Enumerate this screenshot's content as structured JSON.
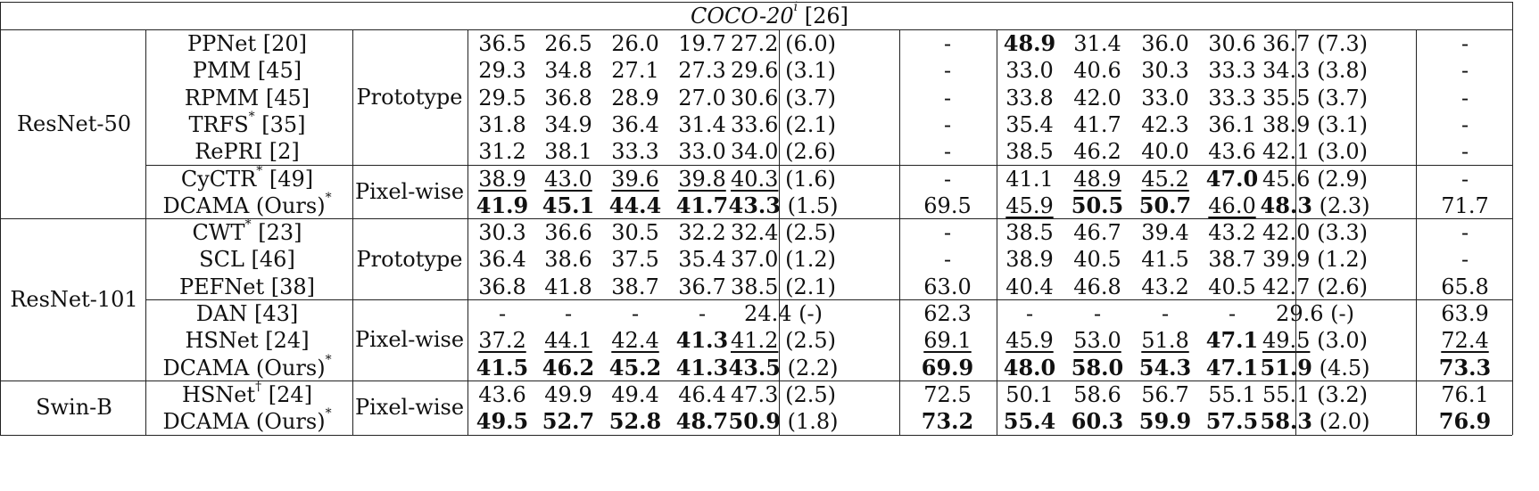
{
  "dataset_header": {
    "name": "COCO-20",
    "sup": "i",
    "ref": "[26]"
  },
  "groups": [
    {
      "backbone": "ResNet-50",
      "blocks": [
        {
          "type": "Prototype",
          "rows": [
            {
              "method": "PPNet [20]",
              "star": false,
              "dagger": false,
              "c": [
                {
                  "v": "36.5"
                },
                {
                  "v": "26.5"
                },
                {
                  "v": "26.0"
                },
                {
                  "v": "19.7"
                },
                {
                  "v": "27.2 (6.0)"
                },
                {
                  "v": "-"
                },
                {
                  "v": "48.9",
                  "b": true
                },
                {
                  "v": "31.4"
                },
                {
                  "v": "36.0"
                },
                {
                  "v": "30.6"
                },
                {
                  "v": "36.7 (7.3)"
                },
                {
                  "v": "-"
                }
              ]
            },
            {
              "method": "PMM [45]",
              "star": false,
              "dagger": false,
              "c": [
                {
                  "v": "29.3"
                },
                {
                  "v": "34.8"
                },
                {
                  "v": "27.1"
                },
                {
                  "v": "27.3"
                },
                {
                  "v": "29.6 (3.1)"
                },
                {
                  "v": "-"
                },
                {
                  "v": "33.0"
                },
                {
                  "v": "40.6"
                },
                {
                  "v": "30.3"
                },
                {
                  "v": "33.3"
                },
                {
                  "v": "34.3 (3.8)"
                },
                {
                  "v": "-"
                }
              ]
            },
            {
              "method": "RPMM [45]",
              "star": false,
              "dagger": false,
              "c": [
                {
                  "v": "29.5"
                },
                {
                  "v": "36.8"
                },
                {
                  "v": "28.9"
                },
                {
                  "v": "27.0"
                },
                {
                  "v": "30.6 (3.7)"
                },
                {
                  "v": "-"
                },
                {
                  "v": "33.8"
                },
                {
                  "v": "42.0"
                },
                {
                  "v": "33.0"
                },
                {
                  "v": "33.3"
                },
                {
                  "v": "35.5 (3.7)"
                },
                {
                  "v": "-"
                }
              ]
            },
            {
              "method": "TRFS [35]",
              "star": true,
              "dagger": false,
              "c": [
                {
                  "v": "31.8"
                },
                {
                  "v": "34.9"
                },
                {
                  "v": "36.4"
                },
                {
                  "v": "31.4"
                },
                {
                  "v": "33.6 (2.1)"
                },
                {
                  "v": "-"
                },
                {
                  "v": "35.4"
                },
                {
                  "v": "41.7"
                },
                {
                  "v": "42.3"
                },
                {
                  "v": "36.1"
                },
                {
                  "v": "38.9 (3.1)"
                },
                {
                  "v": "-"
                }
              ]
            },
            {
              "method": "RePRI [2]",
              "star": false,
              "dagger": false,
              "c": [
                {
                  "v": "31.2"
                },
                {
                  "v": "38.1"
                },
                {
                  "v": "33.3"
                },
                {
                  "v": "33.0"
                },
                {
                  "v": "34.0 (2.6)"
                },
                {
                  "v": "-"
                },
                {
                  "v": "38.5"
                },
                {
                  "v": "46.2"
                },
                {
                  "v": "40.0"
                },
                {
                  "v": "43.6"
                },
                {
                  "v": "42.1 (3.0)"
                },
                {
                  "v": "-"
                }
              ]
            }
          ]
        },
        {
          "type": "Pixel-wise",
          "rows": [
            {
              "method": "CyCTR [49]",
              "star": true,
              "dagger": false,
              "c": [
                {
                  "v": "38.9",
                  "u": true
                },
                {
                  "v": "43.0",
                  "u": true
                },
                {
                  "v": "39.6",
                  "u": true
                },
                {
                  "v": "39.8",
                  "u": true
                },
                {
                  "v": "40.3",
                  "s": " (1.6)",
                  "u": true
                },
                {
                  "v": "-"
                },
                {
                  "v": "41.1"
                },
                {
                  "v": "48.9",
                  "u": true
                },
                {
                  "v": "45.2",
                  "u": true
                },
                {
                  "v": "47.0",
                  "b": true
                },
                {
                  "v": "45.6 (2.9)"
                },
                {
                  "v": "-"
                }
              ]
            },
            {
              "method": "DCAMA (Ours)",
              "star": true,
              "dagger": false,
              "c": [
                {
                  "v": "41.9",
                  "b": true
                },
                {
                  "v": "45.1",
                  "b": true
                },
                {
                  "v": "44.4",
                  "b": true
                },
                {
                  "v": "41.7",
                  "b": true
                },
                {
                  "v": "43.3",
                  "s": " (1.5)",
                  "b": true
                },
                {
                  "v": "69.5"
                },
                {
                  "v": "45.9",
                  "u": true
                },
                {
                  "v": "50.5",
                  "b": true
                },
                {
                  "v": "50.7",
                  "b": true
                },
                {
                  "v": "46.0",
                  "u": true
                },
                {
                  "v": "48.3",
                  "s": " (2.3)",
                  "b": true
                },
                {
                  "v": "71.7"
                }
              ]
            }
          ]
        }
      ]
    },
    {
      "backbone": "ResNet-101",
      "blocks": [
        {
          "type": "Prototype",
          "rows": [
            {
              "method": "CWT [23]",
              "star": true,
              "dagger": false,
              "c": [
                {
                  "v": "30.3"
                },
                {
                  "v": "36.6"
                },
                {
                  "v": "30.5"
                },
                {
                  "v": "32.2"
                },
                {
                  "v": "32.4 (2.5)"
                },
                {
                  "v": "-"
                },
                {
                  "v": "38.5"
                },
                {
                  "v": "46.7"
                },
                {
                  "v": "39.4"
                },
                {
                  "v": "43.2"
                },
                {
                  "v": "42.0 (3.3)"
                },
                {
                  "v": "-"
                }
              ]
            },
            {
              "method": "SCL [46]",
              "star": false,
              "dagger": false,
              "c": [
                {
                  "v": "36.4"
                },
                {
                  "v": "38.6"
                },
                {
                  "v": "37.5"
                },
                {
                  "v": "35.4"
                },
                {
                  "v": "37.0 (1.2)"
                },
                {
                  "v": "-"
                },
                {
                  "v": "38.9"
                },
                {
                  "v": "40.5"
                },
                {
                  "v": "41.5"
                },
                {
                  "v": "38.7"
                },
                {
                  "v": "39.9 (1.2)"
                },
                {
                  "v": "-"
                }
              ]
            },
            {
              "method": "PEFNet [38]",
              "star": false,
              "dagger": false,
              "c": [
                {
                  "v": "36.8"
                },
                {
                  "v": "41.8"
                },
                {
                  "v": "38.7"
                },
                {
                  "v": "36.7"
                },
                {
                  "v": "38.5 (2.1)"
                },
                {
                  "v": "63.0"
                },
                {
                  "v": "40.4"
                },
                {
                  "v": "46.8"
                },
                {
                  "v": "43.2"
                },
                {
                  "v": "40.5"
                },
                {
                  "v": "42.7 (2.6)"
                },
                {
                  "v": "65.8"
                }
              ]
            }
          ]
        },
        {
          "type": "Pixel-wise",
          "rows": [
            {
              "method": "DAN [43]",
              "star": false,
              "dagger": false,
              "c": [
                {
                  "v": "-"
                },
                {
                  "v": "-"
                },
                {
                  "v": "-"
                },
                {
                  "v": "-"
                },
                {
                  "v": "24.4 (-)"
                },
                {
                  "v": "62.3"
                },
                {
                  "v": "-"
                },
                {
                  "v": "-"
                },
                {
                  "v": "-"
                },
                {
                  "v": "-"
                },
                {
                  "v": "29.6 (-)"
                },
                {
                  "v": "63.9"
                }
              ]
            },
            {
              "method": "HSNet [24]",
              "star": false,
              "dagger": false,
              "c": [
                {
                  "v": "37.2",
                  "u": true
                },
                {
                  "v": "44.1",
                  "u": true
                },
                {
                  "v": "42.4",
                  "u": true
                },
                {
                  "v": "41.3",
                  "b": true
                },
                {
                  "v": "41.2",
                  "s": " (2.5)",
                  "u": true
                },
                {
                  "v": "69.1",
                  "u": true
                },
                {
                  "v": "45.9",
                  "u": true
                },
                {
                  "v": "53.0",
                  "u": true
                },
                {
                  "v": "51.8",
                  "u": true
                },
                {
                  "v": "47.1",
                  "b": true
                },
                {
                  "v": "49.5",
                  "s": " (3.0)",
                  "u": true
                },
                {
                  "v": "72.4",
                  "u": true
                }
              ]
            },
            {
              "method": "DCAMA (Ours)",
              "star": true,
              "dagger": false,
              "c": [
                {
                  "v": "41.5",
                  "b": true
                },
                {
                  "v": "46.2",
                  "b": true
                },
                {
                  "v": "45.2",
                  "b": true
                },
                {
                  "v": "41.3",
                  "b": true
                },
                {
                  "v": "43.5",
                  "s": " (2.2)",
                  "b": true
                },
                {
                  "v": "69.9",
                  "b": true
                },
                {
                  "v": "48.0",
                  "b": true
                },
                {
                  "v": "58.0",
                  "b": true
                },
                {
                  "v": "54.3",
                  "b": true
                },
                {
                  "v": "47.1",
                  "b": true
                },
                {
                  "v": "51.9",
                  "s": " (4.5)",
                  "b": true
                },
                {
                  "v": "73.3",
                  "b": true
                }
              ]
            }
          ]
        }
      ]
    },
    {
      "backbone": "Swin-B",
      "blocks": [
        {
          "type": "Pixel-wise",
          "rows": [
            {
              "method": "HSNet [24]",
              "star": false,
              "dagger": true,
              "c": [
                {
                  "v": "43.6"
                },
                {
                  "v": "49.9"
                },
                {
                  "v": "49.4"
                },
                {
                  "v": "46.4"
                },
                {
                  "v": "47.3 (2.5)"
                },
                {
                  "v": "72.5"
                },
                {
                  "v": "50.1"
                },
                {
                  "v": "58.6"
                },
                {
                  "v": "56.7"
                },
                {
                  "v": "55.1"
                },
                {
                  "v": "55.1 (3.2)"
                },
                {
                  "v": "76.1"
                }
              ]
            },
            {
              "method": "DCAMA (Ours)",
              "star": true,
              "dagger": false,
              "c": [
                {
                  "v": "49.5",
                  "b": true
                },
                {
                  "v": "52.7",
                  "b": true
                },
                {
                  "v": "52.8",
                  "b": true
                },
                {
                  "v": "48.7",
                  "b": true
                },
                {
                  "v": "50.9",
                  "s": " (1.8)",
                  "b": true
                },
                {
                  "v": "73.2",
                  "b": true
                },
                {
                  "v": "55.4",
                  "b": true
                },
                {
                  "v": "60.3",
                  "b": true
                },
                {
                  "v": "59.9",
                  "b": true
                },
                {
                  "v": "57.5",
                  "b": true
                },
                {
                  "v": "58.3",
                  "s": " (2.0)",
                  "b": true
                },
                {
                  "v": "76.9",
                  "b": true
                }
              ]
            }
          ]
        }
      ]
    }
  ]
}
